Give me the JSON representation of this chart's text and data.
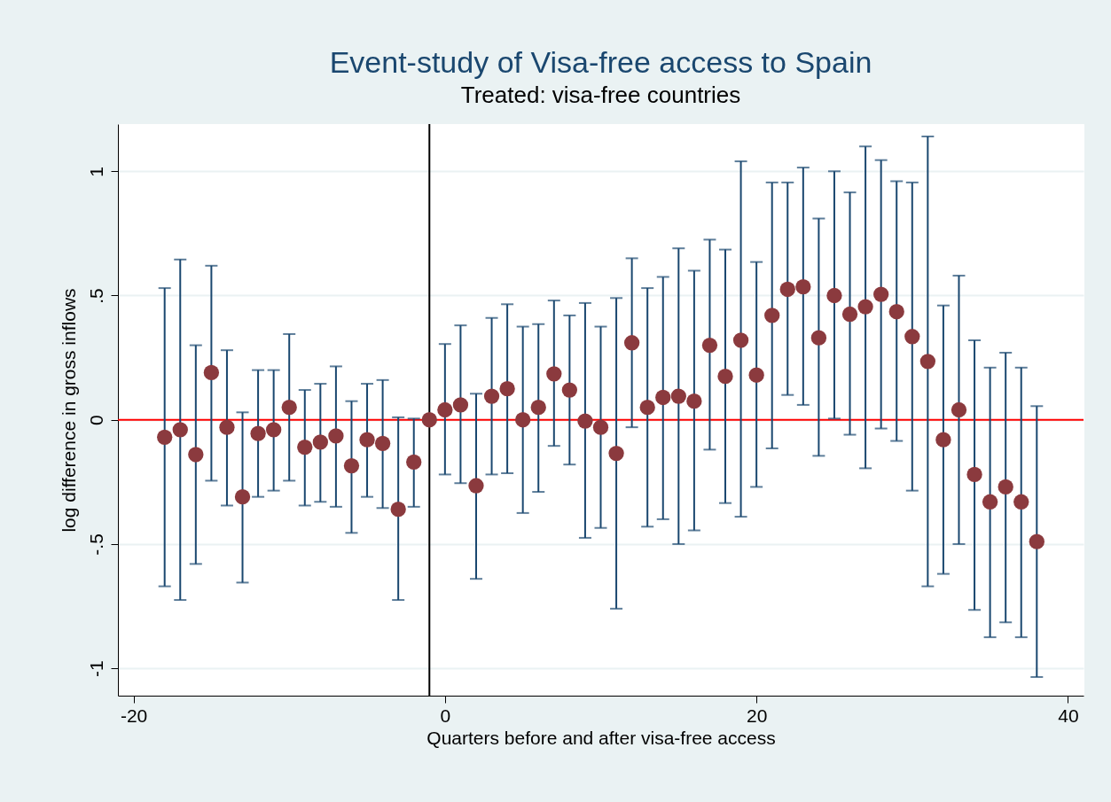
{
  "chart_data": {
    "type": "scatter",
    "title": "Event-study of Visa-free access to Spain",
    "subtitle": "Treated: visa-free countries",
    "xlabel": "Quarters before and after visa-free access",
    "ylabel": "log difference in gross inflows",
    "x": [
      -18,
      -17,
      -16,
      -15,
      -14,
      -13,
      -12,
      -11,
      -10,
      -9,
      -8,
      -7,
      -6,
      -5,
      -4,
      -3,
      -2,
      -1,
      0,
      1,
      2,
      3,
      4,
      5,
      6,
      7,
      8,
      9,
      10,
      11,
      12,
      13,
      14,
      15,
      16,
      17,
      18,
      19,
      20,
      21,
      22,
      23,
      24,
      25,
      26,
      27,
      28,
      29,
      30,
      31,
      32,
      33,
      34,
      35,
      36,
      37,
      38
    ],
    "series": [
      {
        "color": "#8b3a3e",
        "values": [
          -0.07,
          -0.04,
          -0.14,
          0.19,
          -0.03,
          -0.31,
          -0.055,
          -0.04,
          0.05,
          -0.11,
          -0.09,
          -0.065,
          -0.185,
          -0.08,
          -0.095,
          -0.36,
          -0.17,
          0,
          0.04,
          0.06,
          -0.265,
          0.095,
          0.125,
          0,
          0.05,
          0.185,
          0.12,
          -0.005,
          -0.03,
          -0.135,
          0.31,
          0.05,
          0.09,
          0.095,
          0.075,
          0.3,
          0.175,
          0.32,
          0.18,
          0.42,
          0.525,
          0.535,
          0.33,
          0.5,
          0.425,
          0.455,
          0.505,
          0.435,
          0.335,
          0.235,
          -0.08,
          0.04,
          -0.22,
          -0.33,
          -0.27,
          -0.33,
          -0.49
        ],
        "errors": [
          [
            -0.67,
            0.53
          ],
          [
            -0.725,
            0.645
          ],
          [
            -0.58,
            0.3
          ],
          [
            -0.245,
            0.62
          ],
          [
            -0.345,
            0.28
          ],
          [
            -0.655,
            0.03
          ],
          [
            -0.31,
            0.2
          ],
          [
            -0.285,
            0.2
          ],
          [
            -0.245,
            0.345
          ],
          [
            -0.345,
            0.12
          ],
          [
            -0.33,
            0.145
          ],
          [
            -0.35,
            0.215
          ],
          [
            -0.455,
            0.075
          ],
          [
            -0.31,
            0.145
          ],
          [
            -0.355,
            0.16
          ],
          [
            -0.725,
            0.01
          ],
          [
            -0.35,
            0.005
          ],
          null,
          [
            -0.22,
            0.305
          ],
          [
            -0.255,
            0.38
          ],
          [
            -0.64,
            0.105
          ],
          [
            -0.22,
            0.41
          ],
          [
            -0.215,
            0.465
          ],
          [
            -0.375,
            0.375
          ],
          [
            -0.29,
            0.385
          ],
          [
            -0.105,
            0.48
          ],
          [
            -0.18,
            0.42
          ],
          [
            -0.475,
            0.47
          ],
          [
            -0.435,
            0.375
          ],
          [
            -0.76,
            0.49
          ],
          [
            -0.03,
            0.65
          ],
          [
            -0.43,
            0.53
          ],
          [
            -0.4,
            0.575
          ],
          [
            -0.5,
            0.69
          ],
          [
            -0.445,
            0.6
          ],
          [
            -0.12,
            0.725
          ],
          [
            -0.335,
            0.685
          ],
          [
            -0.39,
            1.04
          ],
          [
            -0.27,
            0.635
          ],
          [
            -0.115,
            0.955
          ],
          [
            0.1,
            0.955
          ],
          [
            0.06,
            1.015
          ],
          [
            -0.145,
            0.81
          ],
          [
            0.005,
            1.0
          ],
          [
            -0.06,
            0.915
          ],
          [
            -0.195,
            1.1
          ],
          [
            -0.035,
            1.045
          ],
          [
            -0.085,
            0.96
          ],
          [
            -0.285,
            0.955
          ],
          [
            -0.67,
            1.14
          ],
          [
            -0.62,
            0.46
          ],
          [
            -0.5,
            0.58
          ],
          [
            -0.765,
            0.32
          ],
          [
            -0.875,
            0.21
          ],
          [
            -0.815,
            0.27
          ],
          [
            -0.875,
            0.21
          ],
          [
            -1.035,
            0.055
          ]
        ]
      }
    ],
    "xlim": [
      -21,
      41
    ],
    "xticks": [
      -20,
      0,
      20,
      40
    ],
    "ylim": [
      -1.11,
      1.19
    ],
    "yticks": [
      -1,
      {
        "value": -0.5,
        "label": "-.5"
      },
      0,
      {
        "value": 0.5,
        "label": ".5"
      },
      1
    ],
    "ref_lines": [
      {
        "axis": "y",
        "value": 0,
        "color": "#ff0000"
      },
      {
        "axis": "x",
        "value": -1,
        "color": "#000000"
      }
    ],
    "grid": "y",
    "marker": "circle"
  }
}
